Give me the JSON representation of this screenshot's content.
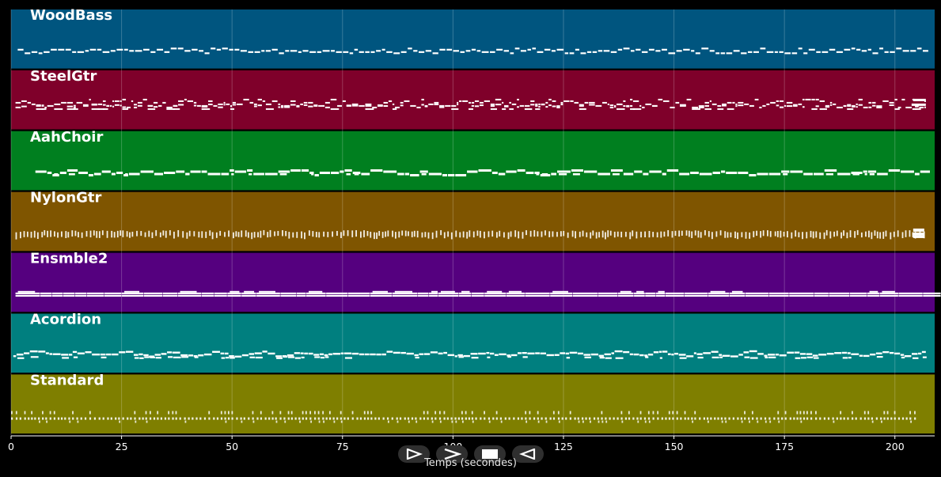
{
  "chart_data": {
    "type": "piano_roll",
    "xlabel": "Temps (secondes)",
    "x_ticks": [
      0,
      25,
      50,
      75,
      100,
      125,
      150,
      175,
      200
    ],
    "xlim": [
      0,
      209
    ],
    "grid": true,
    "tracks": [
      {
        "name": "WoodBass",
        "color": "#00557f",
        "style": "bass",
        "start": 1.5,
        "end": 207
      },
      {
        "name": "SteelGtr",
        "color": "#7f002a",
        "style": "dense",
        "start": 1.0,
        "end": 207
      },
      {
        "name": "AahChoir",
        "color": "#007f1f",
        "style": "choir",
        "start": 5.5,
        "end": 207
      },
      {
        "name": "NylonGtr",
        "color": "#7f5500",
        "style": "ticks",
        "start": 1.0,
        "end": 207
      },
      {
        "name": "Ensmble2",
        "color": "#55007f",
        "style": "strings",
        "start": 1.0,
        "end": 207
      },
      {
        "name": "Acordion",
        "color": "#007f7f",
        "style": "wavy",
        "start": 0.5,
        "end": 207
      },
      {
        "name": "Standard",
        "color": "#7f7f00",
        "style": "drums",
        "start": 0.0,
        "end": 205
      }
    ]
  },
  "controls": {
    "play_icon": "play-icon",
    "forward_icon": "fast-forward-icon",
    "stop_icon": "stop-icon",
    "back_icon": "rewind-icon"
  }
}
